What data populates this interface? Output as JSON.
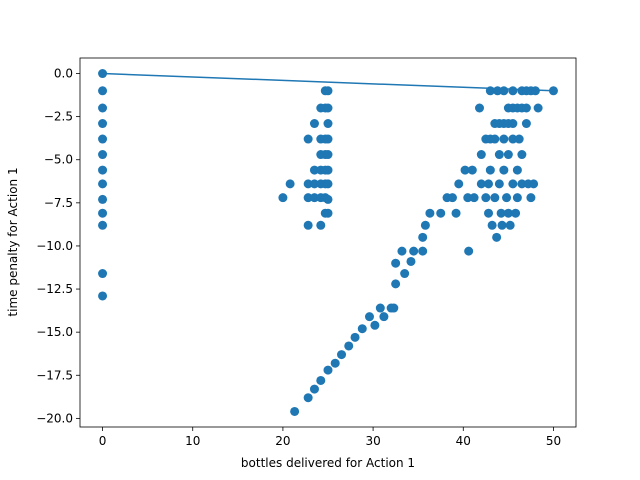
{
  "chart_data": {
    "type": "scatter",
    "title": "",
    "xlabel": "bottles delivered for Action 1",
    "ylabel": "time penalty for Action 1",
    "xlim": [
      -2.5,
      52.5
    ],
    "ylim": [
      -20.5,
      0.9
    ],
    "grid": false,
    "legend": "none",
    "x_ticks": [
      0,
      10,
      20,
      30,
      40,
      50
    ],
    "x_tick_labels": [
      "0",
      "10",
      "20",
      "30",
      "40",
      "50"
    ],
    "y_ticks": [
      0.0,
      -2.5,
      -5.0,
      -7.5,
      -10.0,
      -12.5,
      -15.0,
      -17.5,
      -20.0
    ],
    "y_tick_labels": [
      "0.0",
      "−2.5",
      "−5.0",
      "−7.5",
      "−10.0",
      "−12.5",
      "−15.0",
      "−17.5",
      "−20.0"
    ],
    "colors": {
      "series": "#1f77b4",
      "axes": "#000000",
      "background": "#ffffff"
    },
    "series": [
      {
        "kind": "scatter",
        "points": [
          [
            0,
            0.0
          ],
          [
            0,
            -1.0
          ],
          [
            0,
            -2.0
          ],
          [
            0,
            -2.9
          ],
          [
            0,
            -3.8
          ],
          [
            0,
            -4.7
          ],
          [
            0,
            -5.6
          ],
          [
            0,
            -6.4
          ],
          [
            0,
            -7.3
          ],
          [
            0,
            -8.1
          ],
          [
            0,
            -8.8
          ],
          [
            0,
            -11.6
          ],
          [
            0,
            -12.9
          ],
          [
            20,
            -7.2
          ],
          [
            20.8,
            -6.4
          ],
          [
            22.8,
            -3.8
          ],
          [
            22.8,
            -6.4
          ],
          [
            22.8,
            -7.2
          ],
          [
            22.8,
            -8.8
          ],
          [
            23.5,
            -2.9
          ],
          [
            23.5,
            -5.6
          ],
          [
            23.5,
            -6.4
          ],
          [
            23.5,
            -7.2
          ],
          [
            24.2,
            -2.0
          ],
          [
            24.2,
            -3.8
          ],
          [
            24.2,
            -4.7
          ],
          [
            24.2,
            -5.6
          ],
          [
            24.2,
            -6.4
          ],
          [
            24.2,
            -7.2
          ],
          [
            24.2,
            -8.8
          ],
          [
            24.7,
            -1.0
          ],
          [
            24.7,
            -2.0
          ],
          [
            24.7,
            -3.8
          ],
          [
            24.7,
            -4.7
          ],
          [
            24.7,
            -5.6
          ],
          [
            24.7,
            -6.4
          ],
          [
            24.7,
            -7.2
          ],
          [
            24.7,
            -8.1
          ],
          [
            25.0,
            -1.0
          ],
          [
            25.0,
            -2.0
          ],
          [
            25.0,
            -2.9
          ],
          [
            25.0,
            -3.8
          ],
          [
            25.0,
            -4.7
          ],
          [
            25.0,
            -5.6
          ],
          [
            25.0,
            -6.4
          ],
          [
            25.0,
            -7.3
          ],
          [
            25.0,
            -8.1
          ],
          [
            21.3,
            -19.6
          ],
          [
            22.8,
            -18.8
          ],
          [
            23.5,
            -18.3
          ],
          [
            24.2,
            -17.8
          ],
          [
            25.0,
            -17.2
          ],
          [
            25.8,
            -16.8
          ],
          [
            26.5,
            -16.3
          ],
          [
            27.3,
            -15.8
          ],
          [
            28.0,
            -15.3
          ],
          [
            28.8,
            -14.8
          ],
          [
            29.6,
            -14.1
          ],
          [
            30.2,
            -14.6
          ],
          [
            30.8,
            -13.6
          ],
          [
            31.2,
            -14.1
          ],
          [
            32.0,
            -13.6
          ],
          [
            32.3,
            -13.6
          ],
          [
            32.5,
            -12.2
          ],
          [
            32.5,
            -11.0
          ],
          [
            33.2,
            -10.3
          ],
          [
            33.5,
            -11.6
          ],
          [
            34.2,
            -10.9
          ],
          [
            34.5,
            -10.3
          ],
          [
            35.5,
            -10.3
          ],
          [
            35.5,
            -9.5
          ],
          [
            35.8,
            -8.8
          ],
          [
            36.3,
            -8.1
          ],
          [
            37.5,
            -8.1
          ],
          [
            38.2,
            -7.2
          ],
          [
            38.8,
            -7.2
          ],
          [
            39.2,
            -8.1
          ],
          [
            39.5,
            -6.4
          ],
          [
            40.2,
            -5.6
          ],
          [
            40.5,
            -7.2
          ],
          [
            40.6,
            -10.3
          ],
          [
            41.0,
            -5.6
          ],
          [
            41.2,
            -7.2
          ],
          [
            41.8,
            -2.0
          ],
          [
            42.0,
            -4.7
          ],
          [
            42.0,
            -6.4
          ],
          [
            42.5,
            -7.2
          ],
          [
            42.5,
            -3.8
          ],
          [
            42.8,
            -6.4
          ],
          [
            42.8,
            -8.1
          ],
          [
            43.0,
            -1.0
          ],
          [
            43.0,
            -3.8
          ],
          [
            43.0,
            -5.6
          ],
          [
            43.2,
            -8.8
          ],
          [
            43.5,
            -2.9
          ],
          [
            43.5,
            -3.8
          ],
          [
            43.5,
            -7.2
          ],
          [
            43.7,
            -9.5
          ],
          [
            43.8,
            -1.0
          ],
          [
            44.0,
            -2.9
          ],
          [
            44.0,
            -4.7
          ],
          [
            44.0,
            -6.4
          ],
          [
            44.2,
            -8.1
          ],
          [
            44.3,
            -8.8
          ],
          [
            44.5,
            -1.0
          ],
          [
            44.5,
            -2.9
          ],
          [
            44.5,
            -3.8
          ],
          [
            44.5,
            -5.6
          ],
          [
            44.8,
            -7.2
          ],
          [
            45.0,
            -2.0
          ],
          [
            45.0,
            -2.9
          ],
          [
            45.0,
            -4.7
          ],
          [
            45.0,
            -8.1
          ],
          [
            45.2,
            -8.8
          ],
          [
            45.5,
            -1.0
          ],
          [
            45.5,
            -2.0
          ],
          [
            45.5,
            -2.9
          ],
          [
            45.5,
            -3.8
          ],
          [
            45.5,
            -6.4
          ],
          [
            45.8,
            -8.1
          ],
          [
            46.0,
            -2.0
          ],
          [
            46.0,
            -5.6
          ],
          [
            46.0,
            -7.2
          ],
          [
            46.2,
            -3.8
          ],
          [
            46.5,
            -1.0
          ],
          [
            46.5,
            -2.0
          ],
          [
            46.5,
            -4.7
          ],
          [
            46.5,
            -6.4
          ],
          [
            47.0,
            -1.0
          ],
          [
            47.0,
            -2.0
          ],
          [
            47.0,
            -2.9
          ],
          [
            47.2,
            -6.4
          ],
          [
            47.5,
            -1.0
          ],
          [
            47.5,
            -7.2
          ],
          [
            47.8,
            -6.4
          ],
          [
            48.0,
            -1.0
          ],
          [
            48.3,
            -2.0
          ],
          [
            50.0,
            -1.0
          ]
        ]
      },
      {
        "kind": "line",
        "x": [
          0,
          50
        ],
        "y": [
          0.0,
          -1.0
        ]
      }
    ]
  }
}
